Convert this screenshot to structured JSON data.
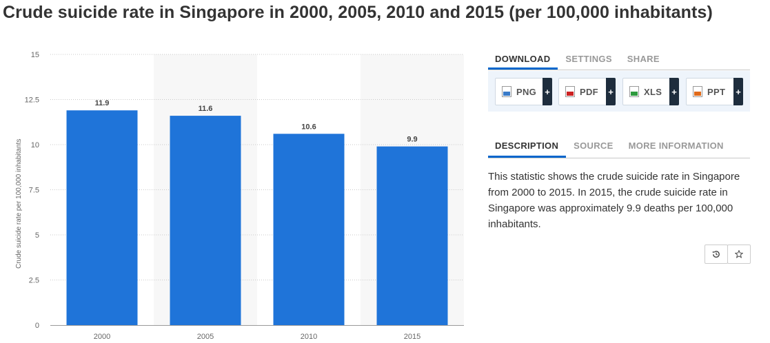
{
  "page": {
    "title": "Crude suicide rate in Singapore in 2000, 2005, 2010 and 2015 (per 100,000 inhabitants)"
  },
  "colors": {
    "bar": "#1f74d9",
    "accent": "#0066cc",
    "plus_bg": "#1e2d3d",
    "panel_bg": "#eef4fb"
  },
  "chart_data": {
    "type": "bar",
    "categories": [
      "2000",
      "2005",
      "2010",
      "2015"
    ],
    "values": [
      11.9,
      11.6,
      10.6,
      9.9
    ],
    "data_labels": [
      "11.9",
      "11.6",
      "10.6",
      "9.9"
    ],
    "title": "",
    "xlabel": "",
    "ylabel": "Crude suicide rate per 100,000 inhabitants",
    "ylim": [
      0,
      15
    ],
    "yticks": [
      0,
      2.5,
      5,
      7.5,
      10,
      12.5,
      15
    ],
    "ytick_labels": [
      "0",
      "2.5",
      "5",
      "7.5",
      "10",
      "12.5",
      "15"
    ],
    "grid": true,
    "legend": "none"
  },
  "tabs_top": [
    {
      "label": "DOWNLOAD",
      "active": true
    },
    {
      "label": "SETTINGS",
      "active": false
    },
    {
      "label": "SHARE",
      "active": false
    }
  ],
  "downloads": [
    {
      "label": "PNG",
      "icon": "png-file-icon"
    },
    {
      "label": "PDF",
      "icon": "pdf-file-icon"
    },
    {
      "label": "XLS",
      "icon": "xls-file-icon"
    },
    {
      "label": "PPT",
      "icon": "ppt-file-icon"
    }
  ],
  "plus_label": "+",
  "tabs_info": [
    {
      "label": "DESCRIPTION",
      "active": true
    },
    {
      "label": "SOURCE",
      "active": false
    },
    {
      "label": "MORE INFORMATION",
      "active": false
    }
  ],
  "description": "This statistic shows the crude suicide rate in Singapore from 2000 to 2015. In 2015, the crude suicide rate in Singapore was approximately 9.9 deaths per 100,000 inhabitants.",
  "icons": {
    "history": "history-icon",
    "favorite": "star-icon"
  }
}
